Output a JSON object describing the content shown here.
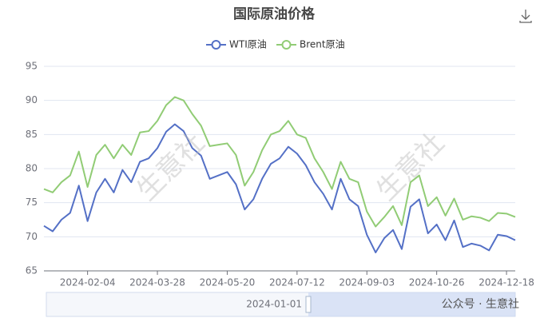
{
  "chart_data": {
    "type": "line",
    "title": "国际原油价格",
    "categories": [
      null,
      null,
      null,
      null,
      null,
      "2024-02-04",
      null,
      null,
      null,
      null,
      null,
      null,
      null,
      "2024-03-28",
      null,
      null,
      null,
      null,
      null,
      null,
      null,
      "2024-05-20",
      null,
      null,
      null,
      null,
      null,
      null,
      null,
      "2024-07-12",
      null,
      null,
      null,
      null,
      null,
      null,
      null,
      "2024-09-03",
      null,
      null,
      null,
      null,
      null,
      null,
      null,
      "2024-10-26",
      null,
      null,
      null,
      null,
      null,
      null,
      null,
      "2024-12-18",
      null
    ],
    "series": [
      {
        "name": "WTI原油",
        "color": "#5470c6",
        "values": [
          71.6,
          70.8,
          72.5,
          73.5,
          77.5,
          72.3,
          76.5,
          78.5,
          76.5,
          79.8,
          78,
          81,
          81.5,
          83,
          85.4,
          86.5,
          85.5,
          83,
          81.9,
          78.5,
          79,
          79.5,
          77.7,
          74,
          75.5,
          78.5,
          80.7,
          81.5,
          83.2,
          82.2,
          80.5,
          78,
          76.3,
          74,
          78.5,
          75.5,
          74.5,
          70.3,
          67.7,
          69.8,
          71,
          68.2,
          74.4,
          75.5,
          70.5,
          71.8,
          69.5,
          72.4,
          68.5,
          69,
          68.7,
          68,
          70.3,
          70.1,
          69.5
        ]
      },
      {
        "name": "Brent原油",
        "color": "#91cc75",
        "values": [
          77,
          76.5,
          78,
          79,
          82.5,
          77.3,
          82,
          83.5,
          81.5,
          83.5,
          82,
          85.3,
          85.5,
          87,
          89.3,
          90.5,
          90,
          88,
          86.3,
          83.3,
          83.5,
          83.7,
          82,
          77.5,
          79.5,
          82.7,
          85,
          85.5,
          87,
          85,
          84.5,
          81.5,
          79.5,
          77,
          81,
          78.5,
          78,
          73.7,
          71.5,
          72.9,
          74.5,
          71.7,
          78,
          79,
          74.5,
          75.8,
          73.1,
          75.6,
          72.5,
          73,
          72.8,
          72.3,
          73.5,
          73.4,
          72.9
        ]
      }
    ],
    "ylim": [
      65,
      95
    ],
    "yticks": [
      65,
      70,
      75,
      80,
      85,
      90,
      95
    ],
    "grid": true,
    "data_zoom_start": "2024-01-01",
    "watermark": "生意社",
    "footer_watermark": "公众号 · 生意社"
  }
}
